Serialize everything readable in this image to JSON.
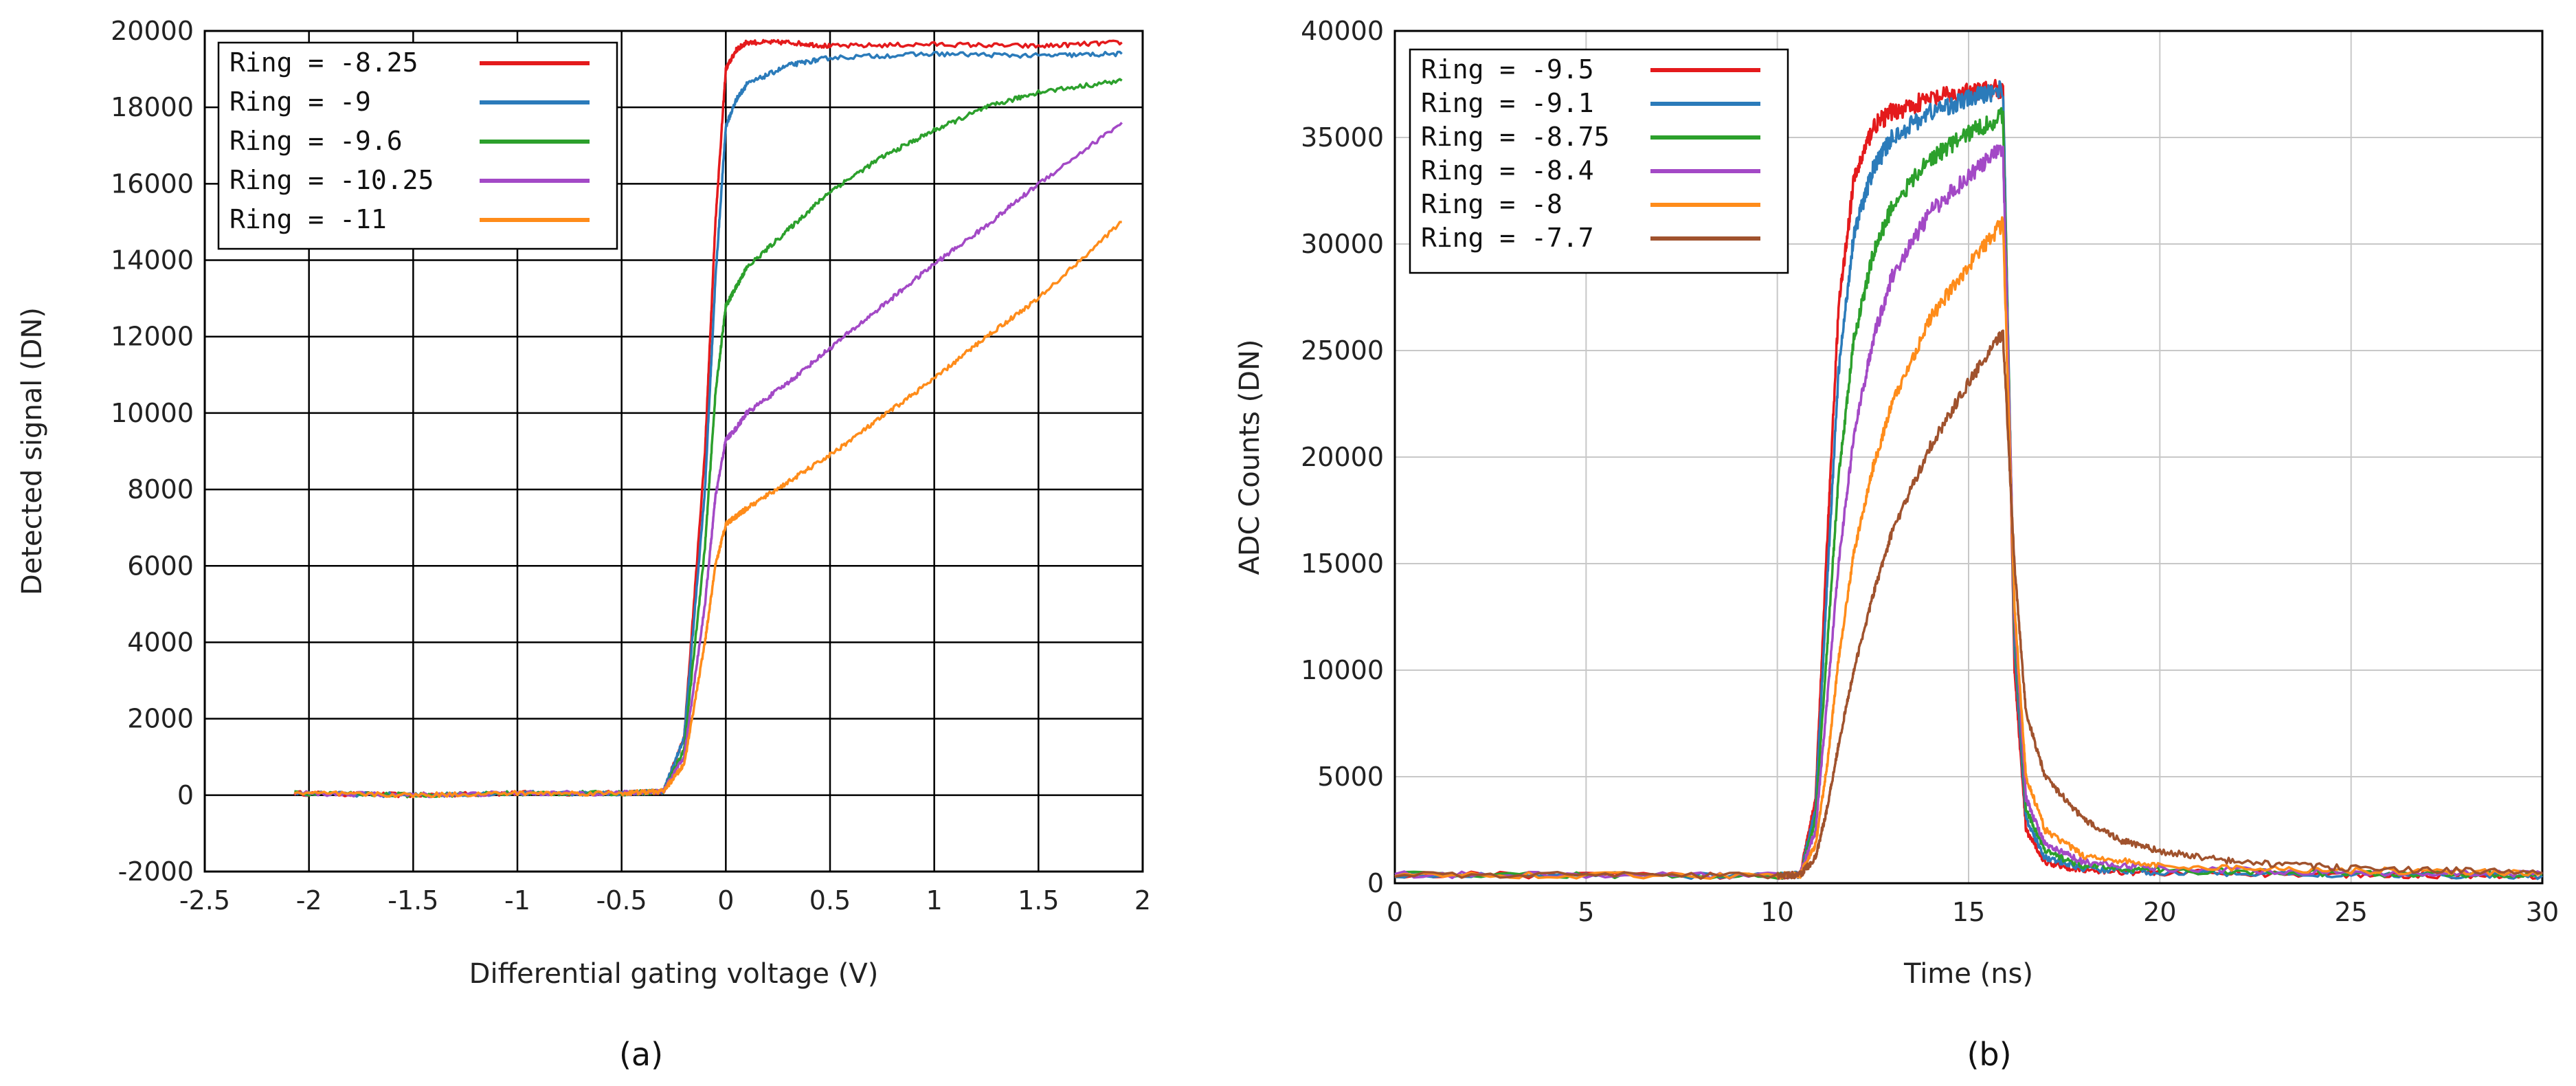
{
  "chart_data": [
    {
      "type": "line",
      "panel_label": "(a)",
      "xlabel": "Differential gating voltage (V)",
      "ylabel": "Detected signal (DN)",
      "xlim": [
        -2.5,
        2
      ],
      "ylim": [
        -2000,
        20000
      ],
      "xticks": [
        -2.5,
        -2,
        -1.5,
        -1,
        -0.5,
        0,
        0.5,
        1,
        1.5,
        2
      ],
      "xtick_labels": [
        "-2.5",
        "-2",
        "-1.5",
        "-1",
        "-0.5",
        "0",
        "0.5",
        "1",
        "1.5",
        "2"
      ],
      "yticks": [
        -2000,
        0,
        2000,
        4000,
        6000,
        8000,
        10000,
        12000,
        14000,
        16000,
        18000,
        20000
      ],
      "ytick_labels": [
        "-2000",
        "0",
        "2000",
        "4000",
        "6000",
        "8000",
        "10000",
        "12000",
        "14000",
        "16000",
        "18000",
        "20000"
      ],
      "grid": true,
      "legend_position": "top-left",
      "series": [
        {
          "name": "Ring = -8.25",
          "color": "#e41a1c",
          "x": [
            -2.07,
            -1.5,
            -1.0,
            -0.5,
            -0.3,
            -0.2,
            -0.1,
            -0.05,
            0.0,
            0.05,
            0.1,
            0.3,
            0.5,
            1.0,
            1.5,
            1.9
          ],
          "y": [
            50,
            0,
            50,
            50,
            100,
            1500,
            9000,
            15000,
            19000,
            19500,
            19700,
            19700,
            19600,
            19650,
            19600,
            19700
          ]
        },
        {
          "name": "Ring = -9",
          "color": "#2b7bba",
          "x": [
            -2.07,
            -1.5,
            -1.0,
            -0.5,
            -0.3,
            -0.2,
            -0.1,
            -0.05,
            0.0,
            0.05,
            0.1,
            0.3,
            0.5,
            1.0,
            1.5,
            1.9
          ],
          "y": [
            50,
            0,
            50,
            50,
            100,
            1500,
            8000,
            13500,
            17500,
            18200,
            18600,
            19100,
            19300,
            19400,
            19350,
            19400
          ]
        },
        {
          "name": "Ring = -9.6",
          "color": "#2ca02c",
          "x": [
            -2.07,
            -1.5,
            -1.0,
            -0.5,
            -0.3,
            -0.2,
            -0.1,
            -0.05,
            0.0,
            0.05,
            0.1,
            0.3,
            0.5,
            0.75,
            1.0,
            1.25,
            1.5,
            1.9
          ],
          "y": [
            50,
            0,
            50,
            50,
            100,
            1200,
            6500,
            10500,
            12800,
            13300,
            13800,
            14800,
            15800,
            16700,
            17400,
            18000,
            18400,
            18700
          ]
        },
        {
          "name": "Ring = -10.25",
          "color": "#a349c6",
          "x": [
            -2.07,
            -1.5,
            -1.0,
            -0.5,
            -0.3,
            -0.2,
            -0.1,
            -0.05,
            0.0,
            0.05,
            0.1,
            0.3,
            0.5,
            0.75,
            1.0,
            1.25,
            1.5,
            1.9
          ],
          "y": [
            50,
            0,
            50,
            50,
            100,
            1000,
            5000,
            7800,
            9300,
            9600,
            10000,
            10800,
            11700,
            12800,
            13900,
            14900,
            16000,
            17600
          ]
        },
        {
          "name": "Ring = -11",
          "color": "#ff8c1a",
          "x": [
            -2.07,
            -1.5,
            -1.0,
            -0.5,
            -0.3,
            -0.2,
            -0.1,
            -0.05,
            0.0,
            0.05,
            0.1,
            0.3,
            0.5,
            0.75,
            1.0,
            1.25,
            1.5,
            1.9
          ],
          "y": [
            50,
            0,
            50,
            50,
            100,
            800,
            4000,
            6000,
            7100,
            7300,
            7500,
            8200,
            8900,
            9900,
            10900,
            12000,
            13000,
            15000
          ]
        }
      ]
    },
    {
      "type": "line",
      "panel_label": "(b)",
      "xlabel": "Time (ns)",
      "ylabel": "ADC Counts (DN)",
      "xlim": [
        0,
        30
      ],
      "ylim": [
        0,
        40000
      ],
      "xticks": [
        0,
        5,
        10,
        15,
        20,
        25,
        30
      ],
      "xtick_labels": [
        "0",
        "5",
        "10",
        "15",
        "20",
        "25",
        "30"
      ],
      "yticks": [
        0,
        5000,
        10000,
        15000,
        20000,
        25000,
        30000,
        35000,
        40000
      ],
      "ytick_labels": [
        "0",
        "5000",
        "10000",
        "15000",
        "20000",
        "25000",
        "30000",
        "35000",
        "40000"
      ],
      "grid": true,
      "legend_position": "top-left",
      "series": [
        {
          "name": "Ring = -9.5",
          "color": "#e41a1c",
          "x": [
            0,
            10,
            10.6,
            11.0,
            11.3,
            11.6,
            12.0,
            12.5,
            13.0,
            14.0,
            15.0,
            15.9,
            16.2,
            16.5,
            17.0,
            18.0,
            20.0,
            25.0,
            30.0
          ],
          "y": [
            400,
            350,
            400,
            4000,
            16000,
            27000,
            33000,
            35500,
            36200,
            36800,
            37100,
            37300,
            10000,
            2500,
            1000,
            600,
            500,
            400,
            350
          ]
        },
        {
          "name": "Ring = -9.1",
          "color": "#2b7bba",
          "x": [
            0,
            10,
            10.6,
            11.0,
            11.3,
            11.6,
            12.0,
            12.5,
            13.0,
            14.0,
            15.0,
            15.9,
            16.2,
            16.5,
            17.0,
            18.0,
            20.0,
            25.0,
            30.0
          ],
          "y": [
            400,
            350,
            400,
            3500,
            14000,
            24000,
            30500,
            33500,
            35000,
            36200,
            36800,
            37300,
            11000,
            3000,
            1200,
            700,
            500,
            400,
            350
          ]
        },
        {
          "name": "Ring = -8.75",
          "color": "#2ca02c",
          "x": [
            0,
            10,
            10.6,
            11.0,
            11.3,
            11.6,
            12.0,
            12.5,
            13.0,
            14.0,
            15.0,
            15.9,
            16.2,
            16.5,
            17.0,
            18.0,
            20.0,
            25.0,
            30.0
          ],
          "y": [
            400,
            350,
            400,
            3000,
            11000,
            19000,
            25500,
            29500,
            31800,
            34000,
            35200,
            36000,
            12000,
            3500,
            1500,
            800,
            600,
            450,
            400
          ]
        },
        {
          "name": "Ring = -8.4",
          "color": "#a349c6",
          "x": [
            0,
            10,
            10.6,
            11.0,
            11.3,
            11.6,
            12.0,
            12.5,
            13.0,
            14.0,
            15.0,
            15.9,
            16.2,
            16.5,
            17.0,
            18.0,
            20.0,
            25.0,
            30.0
          ],
          "y": [
            400,
            350,
            400,
            2500,
            8500,
            15000,
            21000,
            25500,
            28500,
            31500,
            33200,
            34500,
            12500,
            4000,
            1800,
            1000,
            700,
            500,
            450
          ]
        },
        {
          "name": "Ring = -8",
          "color": "#ff8c1a",
          "x": [
            0,
            10,
            10.6,
            11.0,
            11.3,
            11.6,
            12.0,
            12.5,
            13.0,
            14.0,
            15.0,
            15.9,
            16.2,
            16.5,
            17.0,
            18.0,
            20.0,
            25.0,
            30.0
          ],
          "y": [
            400,
            350,
            400,
            1800,
            5500,
            10500,
            15500,
            19500,
            22500,
            26500,
            29000,
            31000,
            13000,
            5000,
            2500,
            1300,
            800,
            600,
            500
          ]
        },
        {
          "name": "Ring = -7.7",
          "color": "#a0522d",
          "x": [
            0,
            10,
            10.6,
            11.0,
            11.3,
            11.6,
            12.0,
            12.5,
            13.0,
            14.0,
            15.0,
            15.9,
            16.2,
            16.5,
            17.0,
            18.0,
            19.0,
            20.0,
            22.0,
            25.0,
            30.0
          ],
          "y": [
            400,
            350,
            400,
            1200,
            3500,
            6500,
            10000,
            13500,
            16500,
            20500,
            23500,
            25800,
            15000,
            8000,
            5000,
            3000,
            2000,
            1500,
            1000,
            700,
            500
          ]
        }
      ]
    }
  ]
}
